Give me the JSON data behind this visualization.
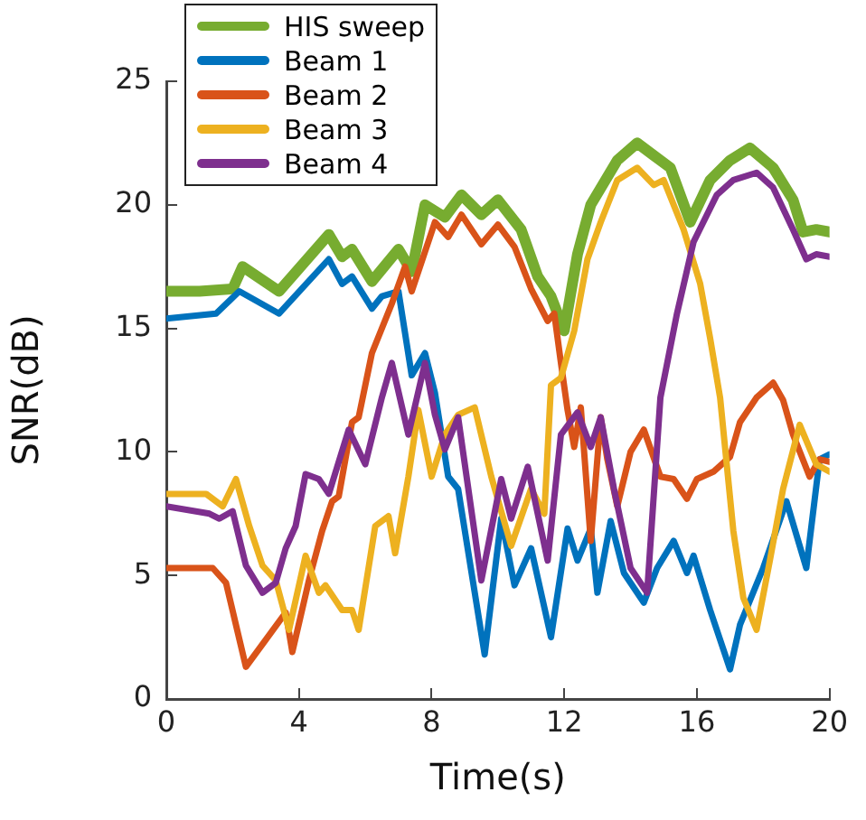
{
  "chart_data": {
    "type": "line",
    "xlabel": "Time(s)",
    "ylabel": "SNR(dB)",
    "xlim": [
      0,
      20
    ],
    "xticks": [
      0,
      4,
      8,
      12,
      16,
      20
    ],
    "ylim": [
      0,
      25
    ],
    "yticks": [
      0,
      5,
      10,
      15,
      20,
      25
    ],
    "grid": false,
    "legend": "top left",
    "marker": "none",
    "line_style": "solid",
    "series": [
      {
        "name": "HIS sweep",
        "color": "#77ac30",
        "x": [
          0,
          1,
          2,
          2.3,
          3.4,
          4.9,
          5.3,
          5.6,
          6.2,
          7,
          7.4,
          7.8,
          8.4,
          8.9,
          9.5,
          10,
          10.7,
          11.2,
          11.6,
          12,
          12.4,
          12.8,
          13.6,
          14.2,
          14.7,
          15.2,
          15.8,
          16.4,
          17,
          17.6,
          18.3,
          18.9,
          19.2,
          19.6,
          20
        ],
        "values": [
          16.5,
          16.5,
          16.6,
          17.5,
          16.5,
          18.8,
          17.9,
          18.2,
          16.9,
          18.2,
          17.3,
          20,
          19.5,
          20.4,
          19.6,
          20.2,
          19,
          17.1,
          16.3,
          14.9,
          18,
          20,
          21.8,
          22.5,
          22,
          21.5,
          19.3,
          21,
          21.8,
          22.3,
          21.5,
          20.2,
          18.9,
          19,
          18.9
        ]
      },
      {
        "name": "Beam 1",
        "color": "#0072bd",
        "x": [
          0,
          1.5,
          2.2,
          3.4,
          4.9,
          5.3,
          5.6,
          6.2,
          6.5,
          7,
          7.4,
          7.8,
          8.1,
          8.5,
          8.8,
          9.6,
          10.1,
          10.5,
          11,
          11.6,
          12.1,
          12.4,
          12.8,
          13,
          13.4,
          13.8,
          14.4,
          14.8,
          15.3,
          15.7,
          15.9,
          16.4,
          17,
          17.3,
          18,
          18.7,
          19.3,
          19.7,
          20
        ],
        "values": [
          15.4,
          15.6,
          16.5,
          15.6,
          17.8,
          16.8,
          17.1,
          15.8,
          16.3,
          16.5,
          13.1,
          14,
          12.4,
          9,
          8.5,
          1.8,
          7.3,
          4.6,
          6.1,
          2.5,
          6.9,
          5.6,
          6.9,
          4.3,
          7.2,
          5.1,
          3.9,
          5.3,
          6.4,
          5.1,
          5.8,
          3.6,
          1.2,
          3,
          5.3,
          8,
          5.3,
          9.7,
          9.9
        ]
      },
      {
        "name": "Beam 2",
        "color": "#d95319",
        "x": [
          0,
          1.4,
          1.8,
          2.4,
          3,
          3.6,
          3.8,
          4.3,
          4.7,
          5,
          5.2,
          5.6,
          5.8,
          6.2,
          6.8,
          7.2,
          7.4,
          8.1,
          8.5,
          8.9,
          9.5,
          10,
          10.5,
          11,
          11.5,
          11.7,
          11.9,
          12.1,
          12.3,
          12.5,
          12.8,
          13.1,
          13.3,
          13.6,
          14,
          14.4,
          14.9,
          15.3,
          15.7,
          16,
          16.5,
          17,
          17.3,
          17.8,
          18.3,
          18.6,
          18.9,
          19.4,
          19.7,
          20
        ],
        "values": [
          5.3,
          5.3,
          4.7,
          1.3,
          2.4,
          3.5,
          1.9,
          4.8,
          6.8,
          8,
          8.2,
          11.2,
          11.4,
          14,
          16,
          17.5,
          16.5,
          19.3,
          18.7,
          19.6,
          18.4,
          19.2,
          18.3,
          16.6,
          15.3,
          15.6,
          13.6,
          11.7,
          10.2,
          11.8,
          6.4,
          11.4,
          9.7,
          7.8,
          10,
          10.9,
          9,
          8.9,
          8.1,
          8.9,
          9.2,
          9.8,
          11.2,
          12.2,
          12.8,
          12.1,
          10.7,
          9,
          9.7,
          9.6
        ]
      },
      {
        "name": "Beam 3",
        "color": "#edb120",
        "x": [
          0,
          1.2,
          1.7,
          2.1,
          2.5,
          2.9,
          3.3,
          3.7,
          4.2,
          4.6,
          4.8,
          5.3,
          5.6,
          5.8,
          6.3,
          6.7,
          6.9,
          7.3,
          7.6,
          8,
          8.4,
          8.8,
          9.3,
          9.8,
          10.4,
          11,
          11.4,
          11.6,
          11.9,
          12.3,
          12.7,
          13.1,
          13.6,
          14.2,
          14.7,
          15,
          15.6,
          16.1,
          16.4,
          16.7,
          17.1,
          17.4,
          17.8,
          18.2,
          18.6,
          19.1,
          19.6,
          20
        ],
        "values": [
          8.3,
          8.3,
          7.8,
          8.9,
          7,
          5.4,
          4.8,
          2.8,
          5.8,
          4.3,
          4.6,
          3.6,
          3.6,
          2.8,
          7,
          7.4,
          5.9,
          9,
          11.7,
          9,
          10.7,
          11.5,
          11.8,
          9,
          6.2,
          8.5,
          7.5,
          12.7,
          13,
          14.9,
          17.8,
          19.3,
          21,
          21.5,
          20.8,
          21,
          19,
          16.8,
          14.6,
          12.2,
          6.8,
          4.1,
          2.8,
          5.6,
          8.5,
          11.1,
          9.5,
          9.2
        ]
      },
      {
        "name": "Beam 4",
        "color": "#7e2f8e",
        "x": [
          0,
          1.3,
          1.6,
          2,
          2.4,
          2.9,
          3.3,
          3.6,
          3.9,
          4.2,
          4.6,
          4.9,
          5.5,
          6,
          6.5,
          6.8,
          7.3,
          7.8,
          8.1,
          8.4,
          8.8,
          9.5,
          10.1,
          10.4,
          10.9,
          11.5,
          11.9,
          12.4,
          12.8,
          13.1,
          13.5,
          14,
          14.5,
          14.9,
          15.4,
          15.9,
          16.6,
          17.1,
          17.8,
          18.3,
          18.9,
          19.3,
          19.6,
          20
        ],
        "values": [
          7.8,
          7.5,
          7.3,
          7.6,
          5.4,
          4.3,
          4.7,
          6.1,
          7,
          9.1,
          8.9,
          8.3,
          10.9,
          9.5,
          12.2,
          13.6,
          10.7,
          13.6,
          11.5,
          10.1,
          11.4,
          4.8,
          8.9,
          7.3,
          9.4,
          5.6,
          10.7,
          11.6,
          10.2,
          11.4,
          8.5,
          5.3,
          4.3,
          12.2,
          15.6,
          18.5,
          20.4,
          21,
          21.3,
          20.7,
          19,
          17.8,
          18,
          17.9
        ]
      }
    ]
  }
}
